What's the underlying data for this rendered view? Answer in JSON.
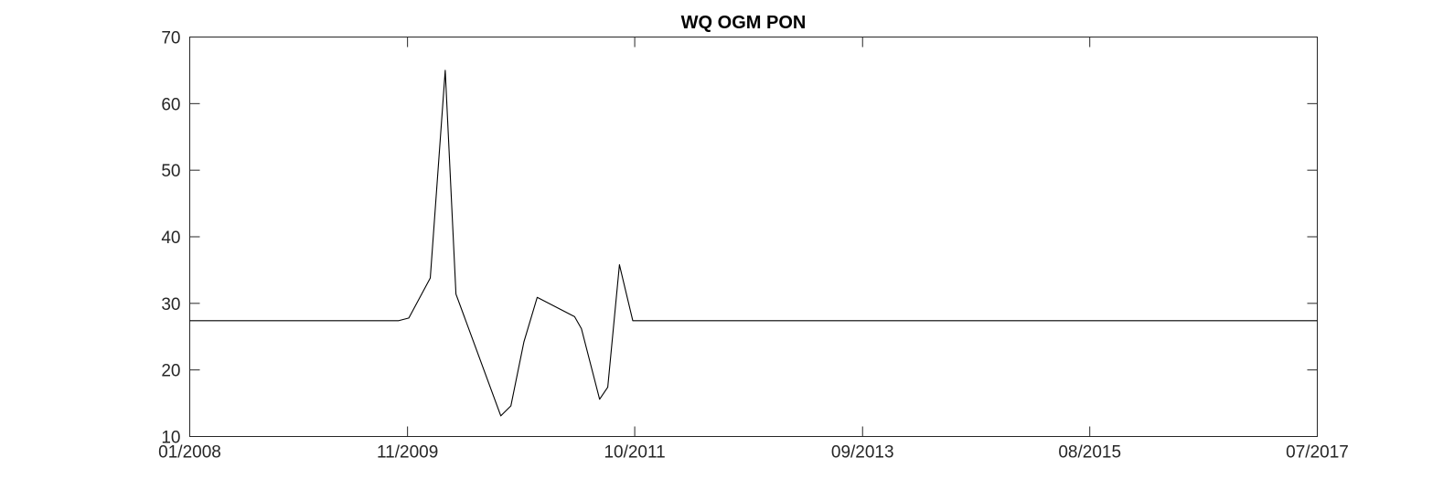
{
  "chart_data": {
    "type": "line",
    "title": "WQ OGM PON",
    "xlabel": "",
    "ylabel": "",
    "ylim": [
      10,
      70
    ],
    "yticks": [
      10,
      20,
      30,
      40,
      50,
      60,
      70
    ],
    "xlim": [
      "2008-01-01",
      "2017-07-01"
    ],
    "xticks": [
      {
        "date": "2008-01-01",
        "label": "01/2008"
      },
      {
        "date": "2009-11-01",
        "label": "11/2009"
      },
      {
        "date": "2011-10-01",
        "label": "10/2011"
      },
      {
        "date": "2013-09-01",
        "label": "09/2013"
      },
      {
        "date": "2015-08-01",
        "label": "08/2015"
      },
      {
        "date": "2017-07-01",
        "label": "07/2017"
      }
    ],
    "grid": false,
    "line_color": "#000000",
    "series": [
      {
        "x": [
          "2008-01-01",
          "2009-10-05",
          "2009-11-05",
          "2010-01-10",
          "2010-02-25",
          "2010-03-30",
          "2010-08-15",
          "2010-09-15",
          "2010-10-25",
          "2010-12-05",
          "2011-03-30",
          "2011-04-20",
          "2011-06-15",
          "2011-07-10",
          "2011-08-15",
          "2011-09-25",
          "2011-10-25",
          "2012-06-01",
          "2014-06-01",
          "2017-07-01"
        ],
        "values": [
          27.4,
          27.4,
          27.8,
          33.8,
          65.0,
          31.4,
          13.1,
          14.6,
          24.2,
          30.9,
          28.0,
          26.2,
          15.6,
          17.4,
          35.8,
          27.4,
          27.4,
          27.4,
          27.4,
          27.4
        ]
      }
    ]
  }
}
